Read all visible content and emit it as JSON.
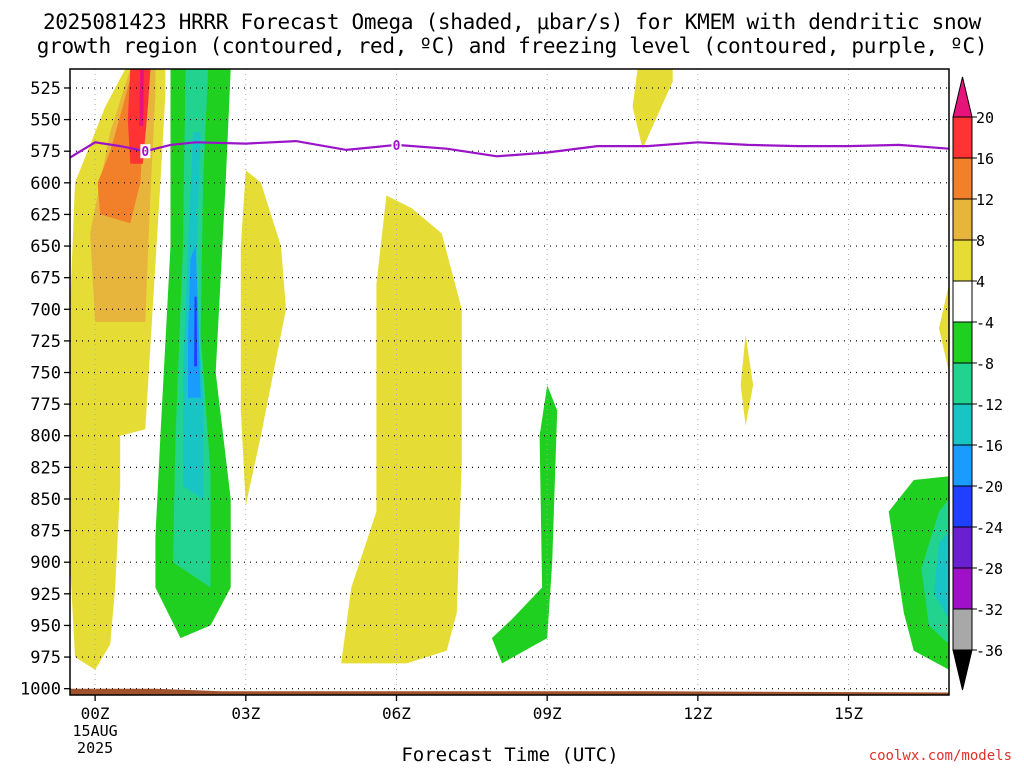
{
  "title_line1": "2025081423 HRRR Forecast Omega (shaded, μbar/s) for KMEM with dendritic snow",
  "title_line2": "growth region (contoured, red, ºC) and freezing level (contoured, purple, ºC)",
  "xlabel": "Forecast Time (UTC)",
  "credit": "coolwx.com/models",
  "chart_data": {
    "type": "heatmap",
    "title": "2025081423 HRRR Forecast Omega (shaded, μbar/s) for KMEM with dendritic snow growth region (contoured, red, ºC) and freezing level (contoured, purple, ºC)",
    "xlabel": "Forecast Time (UTC)",
    "ylabel": "",
    "x_range_hours": [
      -0.5,
      17
    ],
    "x_ticks": [
      {
        "hour": 0,
        "label": "00Z",
        "sub": [
          "15AUG",
          "2025"
        ]
      },
      {
        "hour": 3,
        "label": "03Z"
      },
      {
        "hour": 6,
        "label": "06Z"
      },
      {
        "hour": 9,
        "label": "09Z"
      },
      {
        "hour": 12,
        "label": "12Z"
      },
      {
        "hour": 15,
        "label": "15Z"
      }
    ],
    "y_range_hpa": [
      1005,
      510
    ],
    "y_ticks": [
      525,
      550,
      575,
      600,
      625,
      650,
      675,
      700,
      725,
      750,
      775,
      800,
      825,
      850,
      875,
      900,
      925,
      950,
      975,
      1000
    ],
    "grid": true,
    "colorbar": {
      "labels": [
        "20",
        "16",
        "12",
        "8",
        "4",
        "-4",
        "-8",
        "-12",
        "-16",
        "-20",
        "-24",
        "-28",
        "-32",
        "-36"
      ],
      "colors": [
        "#ff3333",
        "#f2802a",
        "#e8b53c",
        "#e6dc36",
        "#ffffff",
        "#20d020",
        "#22d390",
        "#18c4c4",
        "#1a9cff",
        "#2040ff",
        "#6a1fd0",
        "#a010c8",
        "#a8a8a8"
      ],
      "top_color": "#e8137a",
      "bottom_color": "#000000"
    },
    "colors": {
      "freezing_level": "#9b13c8",
      "ground": "#a0522d",
      "up4": "#e6dc36",
      "up8": "#e8b53c",
      "up12": "#f2802a",
      "up16": "#ff3333",
      "up20": "#e8137a",
      "dn4": "#20d020",
      "dn8": "#22d390",
      "dn12": "#18c4c4",
      "dn16": "#1a9cff",
      "dn20": "#2040ff"
    },
    "freezing_level_contour": {
      "label": "0",
      "points": [
        [
          -0.5,
          580
        ],
        [
          0,
          568
        ],
        [
          0.5,
          571
        ],
        [
          1,
          575
        ],
        [
          1.5,
          570
        ],
        [
          2,
          568
        ],
        [
          3,
          569
        ],
        [
          4,
          567
        ],
        [
          5,
          574
        ],
        [
          6,
          570
        ],
        [
          7,
          573
        ],
        [
          8,
          579
        ],
        [
          9,
          576
        ],
        [
          10,
          571
        ],
        [
          11,
          571
        ],
        [
          12,
          568
        ],
        [
          13,
          570
        ],
        [
          14,
          571
        ],
        [
          15,
          571
        ],
        [
          16,
          570
        ],
        [
          17,
          573
        ]
      ],
      "label_hours": [
        1,
        6
      ]
    },
    "shaded_regions": [
      {
        "level": "up4",
        "points": [
          [
            -0.4,
            975
          ],
          [
            0,
            985
          ],
          [
            0.3,
            965
          ],
          [
            0.4,
            920
          ],
          [
            0.5,
            840
          ],
          [
            0.5,
            800
          ],
          [
            1,
            795
          ],
          [
            1.3,
            600
          ],
          [
            1.4,
            530
          ],
          [
            1.4,
            510
          ],
          [
            0.6,
            510
          ],
          [
            0.2,
            540
          ],
          [
            -0.4,
            600
          ],
          [
            -0.5,
            700
          ],
          [
            -0.5,
            900
          ]
        ]
      },
      {
        "level": "up8",
        "points": [
          [
            0,
            710
          ],
          [
            1,
            710
          ],
          [
            1.1,
            610
          ],
          [
            1.2,
            530
          ],
          [
            1.2,
            510
          ],
          [
            0.7,
            510
          ],
          [
            0.3,
            560
          ],
          [
            -0.1,
            640
          ]
        ]
      },
      {
        "level": "up12",
        "points": [
          [
            0.1,
            625
          ],
          [
            0.7,
            632
          ],
          [
            0.9,
            600
          ],
          [
            1.0,
            540
          ],
          [
            0.9,
            510
          ],
          [
            0.75,
            510
          ],
          [
            0.55,
            540
          ],
          [
            0.3,
            575
          ],
          [
            0.05,
            600
          ]
        ]
      },
      {
        "level": "up16",
        "points": [
          [
            0.7,
            585
          ],
          [
            0.95,
            585
          ],
          [
            1.05,
            540
          ],
          [
            1.1,
            510
          ],
          [
            0.7,
            510
          ],
          [
            0.65,
            550
          ]
        ]
      },
      {
        "level": "up20",
        "points": [
          [
            0.88,
            555
          ],
          [
            0.96,
            555
          ],
          [
            0.97,
            510
          ],
          [
            0.9,
            510
          ]
        ]
      },
      {
        "level": "up4",
        "points": [
          [
            3.0,
            855
          ],
          [
            3.3,
            800
          ],
          [
            3.8,
            700
          ],
          [
            3.7,
            650
          ],
          [
            3.3,
            600
          ],
          [
            3.0,
            590
          ],
          [
            2.9,
            650
          ],
          [
            2.9,
            780
          ]
        ]
      },
      {
        "level": "up4",
        "points": [
          [
            5.4,
            980
          ],
          [
            6.2,
            980
          ],
          [
            7.0,
            970
          ],
          [
            7.2,
            940
          ],
          [
            7.3,
            820
          ],
          [
            7.3,
            700
          ],
          [
            6.9,
            640
          ],
          [
            6.3,
            620
          ],
          [
            5.8,
            610
          ],
          [
            5.6,
            680
          ],
          [
            5.6,
            860
          ],
          [
            5.1,
            920
          ],
          [
            4.9,
            980
          ]
        ]
      },
      {
        "level": "up4",
        "points": [
          [
            10.9,
            573
          ],
          [
            11.5,
            520
          ],
          [
            11.5,
            510
          ],
          [
            10.8,
            510
          ],
          [
            10.7,
            540
          ]
        ]
      },
      {
        "level": "up4",
        "points": [
          [
            12.95,
            792
          ],
          [
            13.1,
            760
          ],
          [
            12.95,
            720
          ],
          [
            12.85,
            760
          ]
        ]
      },
      {
        "level": "up4",
        "points": [
          [
            17.0,
            680
          ],
          [
            16.8,
            715
          ],
          [
            17.0,
            750
          ]
        ]
      },
      {
        "level": "dn4",
        "points": [
          [
            1.2,
            920
          ],
          [
            1.7,
            960
          ],
          [
            2.3,
            950
          ],
          [
            2.7,
            920
          ],
          [
            2.7,
            850
          ],
          [
            2.4,
            750
          ],
          [
            2.6,
            600
          ],
          [
            2.7,
            510
          ],
          [
            1.5,
            510
          ],
          [
            1.5,
            650
          ],
          [
            1.3,
            800
          ],
          [
            1.2,
            880
          ]
        ]
      },
      {
        "level": "dn8",
        "points": [
          [
            1.55,
            900
          ],
          [
            2.3,
            920
          ],
          [
            2.3,
            830
          ],
          [
            2.1,
            720
          ],
          [
            2.15,
            600
          ],
          [
            2.25,
            510
          ],
          [
            1.8,
            510
          ],
          [
            1.75,
            650
          ],
          [
            1.6,
            800
          ]
        ]
      },
      {
        "level": "dn12",
        "points": [
          [
            1.75,
            840
          ],
          [
            2.15,
            850
          ],
          [
            2.15,
            760
          ],
          [
            2.0,
            700
          ],
          [
            2.05,
            620
          ],
          [
            2.1,
            560
          ],
          [
            1.95,
            560
          ],
          [
            1.85,
            650
          ],
          [
            1.75,
            750
          ]
        ]
      },
      {
        "level": "dn16",
        "points": [
          [
            1.85,
            770
          ],
          [
            2.1,
            770
          ],
          [
            2.05,
            700
          ],
          [
            2.0,
            650
          ],
          [
            1.9,
            660
          ],
          [
            1.85,
            720
          ]
        ]
      },
      {
        "level": "dn20",
        "points": [
          [
            1.97,
            745
          ],
          [
            2.03,
            745
          ],
          [
            2.02,
            690
          ],
          [
            1.98,
            690
          ]
        ]
      },
      {
        "level": "dn4",
        "points": [
          [
            8.1,
            980
          ],
          [
            9.0,
            960
          ],
          [
            9.1,
            900
          ],
          [
            9.2,
            780
          ],
          [
            9.0,
            760
          ],
          [
            8.85,
            800
          ],
          [
            8.9,
            920
          ],
          [
            8.3,
            945
          ],
          [
            7.9,
            960
          ]
        ]
      },
      {
        "level": "dn4",
        "points": [
          [
            17.0,
            985
          ],
          [
            16.3,
            970
          ],
          [
            16.1,
            940
          ],
          [
            15.8,
            860
          ],
          [
            16.3,
            835
          ],
          [
            17.0,
            832
          ]
        ]
      },
      {
        "level": "dn8",
        "points": [
          [
            17.0,
            965
          ],
          [
            16.6,
            950
          ],
          [
            16.45,
            905
          ],
          [
            16.8,
            860
          ],
          [
            17.0,
            850
          ]
        ]
      },
      {
        "level": "dn12",
        "points": [
          [
            17.0,
            945
          ],
          [
            16.7,
            925
          ],
          [
            16.8,
            885
          ],
          [
            17.0,
            875
          ]
        ]
      }
    ],
    "ground": {
      "points": [
        [
          -0.5,
          1000
        ],
        [
          1.2,
          1000
        ],
        [
          2.5,
          1002
        ],
        [
          11,
          1002
        ],
        [
          17,
          1003
        ]
      ]
    }
  }
}
